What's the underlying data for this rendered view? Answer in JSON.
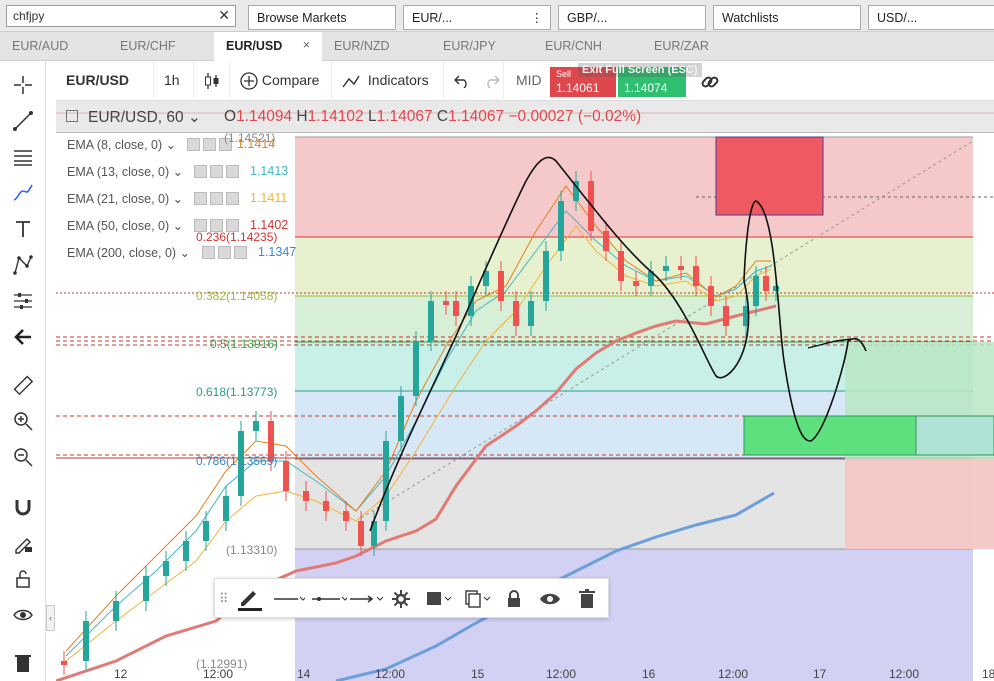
{
  "browser": {
    "search_value": "chfjpy",
    "tabs": [
      "Browse Markets",
      "EUR/...",
      "GBP/...",
      "Watchlists",
      "USD/..."
    ],
    "tab_menu_glyph": "⋮"
  },
  "symbol_tabs": [
    {
      "label": "EUR/AUD",
      "active": false
    },
    {
      "label": "EUR/CHF",
      "active": false
    },
    {
      "label": "EUR/USD",
      "active": true
    },
    {
      "label": "EUR/NZD",
      "active": false
    },
    {
      "label": "EUR/JPY",
      "active": false
    },
    {
      "label": "EUR/CNH",
      "active": false
    },
    {
      "label": "EUR/ZAR",
      "active": false
    }
  ],
  "toolbar": {
    "symbol": "EUR/USD",
    "interval": "1h",
    "compare_label": "Compare",
    "indicators_label": "Indicators",
    "price_mode": "MID",
    "sell_label": "Sell",
    "sell_price": "1.14061",
    "buy_price": "1.14074",
    "fullscreen_tip": "Exit Full Screen (ESC)"
  },
  "legend": {
    "symbol_interval": "EUR/USD, 60",
    "open_label": "O",
    "open": "1.14094",
    "high_label": "H",
    "high": "1.14102",
    "low_label": "L",
    "low": "1.14067",
    "close_label": "C",
    "close": "1.14067",
    "change": "−0.00027 (−0.02%)"
  },
  "indicators": [
    {
      "name": "EMA (8, close, 0)",
      "value": "1.1414",
      "color": "#e5801b"
    },
    {
      "name": "EMA (13, close, 0)",
      "value": "1.1413",
      "color": "#3fb8c6"
    },
    {
      "name": "EMA (21, close, 0)",
      "value": "1.1411",
      "color": "#f0b43a"
    },
    {
      "name": "EMA (50, close, 0)",
      "value": "1.1402",
      "color": "#d6332f"
    },
    {
      "name": "EMA (200, close, 0)",
      "value": "1.1347",
      "color": "#3b86d6"
    }
  ],
  "fib_levels": [
    {
      "label": "(1.14521)",
      "color": "#888888"
    },
    {
      "label": "0.236(1.14235)",
      "color": "#d6332f"
    },
    {
      "label": "0.382(1.14058)",
      "color": "#9bbf3a"
    },
    {
      "label": "0.5(1.13916)",
      "color": "#3aa64a"
    },
    {
      "label": "0.618(1.13773)",
      "color": "#2e9a8a"
    },
    {
      "label": "0.786(1.13569)",
      "color": "#3b86c6"
    },
    {
      "label": "(1.13310)",
      "color": "#888888"
    },
    {
      "label": "(1.12991)",
      "color": "#888888"
    }
  ],
  "time_axis": [
    "12",
    "12:00",
    "14",
    "12:00",
    "15",
    "12:00",
    "16",
    "12:00",
    "17",
    "12:00",
    "18"
  ],
  "colors": {
    "bull": "#26a69a",
    "bear": "#ef5350",
    "sell": "#e0474d",
    "buy": "#2fbf71"
  }
}
